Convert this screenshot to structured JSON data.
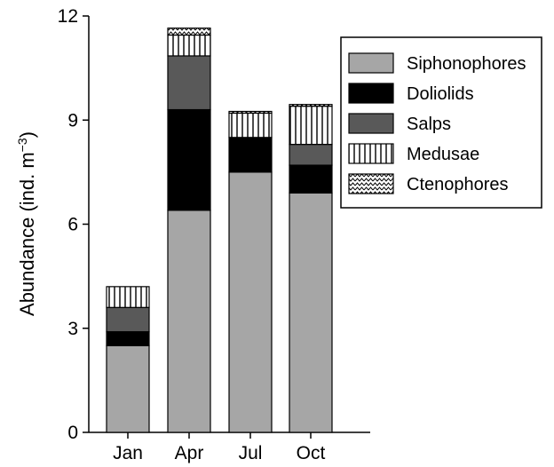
{
  "chart_data": {
    "type": "bar",
    "stacked": true,
    "categories": [
      "Jan",
      "Apr",
      "Jul",
      "Oct"
    ],
    "ylabel_main": "Abundance (ind. m",
    "ylabel_sup": "−3",
    "ylabel_close": ")",
    "xlabel": "",
    "ylim": [
      0,
      12
    ],
    "yticks": [
      0,
      3,
      6,
      9,
      12
    ],
    "legend_position": "top-right",
    "grid": false,
    "series": [
      {
        "name": "Siphonophores",
        "values": [
          2.5,
          6.4,
          7.5,
          6.9
        ],
        "fill": "gray",
        "color": "#a6a6a6"
      },
      {
        "name": "Doliolids",
        "values": [
          0.4,
          2.9,
          1.0,
          0.8
        ],
        "fill": "solid",
        "color": "#000000"
      },
      {
        "name": "Salps",
        "values": [
          0.7,
          1.55,
          0.0,
          0.6
        ],
        "fill": "dark",
        "color": "#595959"
      },
      {
        "name": "Medusae",
        "values": [
          0.6,
          0.6,
          0.7,
          1.1
        ],
        "fill": "vertical-lines",
        "color": "#ffffff"
      },
      {
        "name": "Ctenophores",
        "values": [
          0.0,
          0.2,
          0.05,
          0.05
        ],
        "fill": "zigzag",
        "color": "#ffffff"
      }
    ]
  }
}
